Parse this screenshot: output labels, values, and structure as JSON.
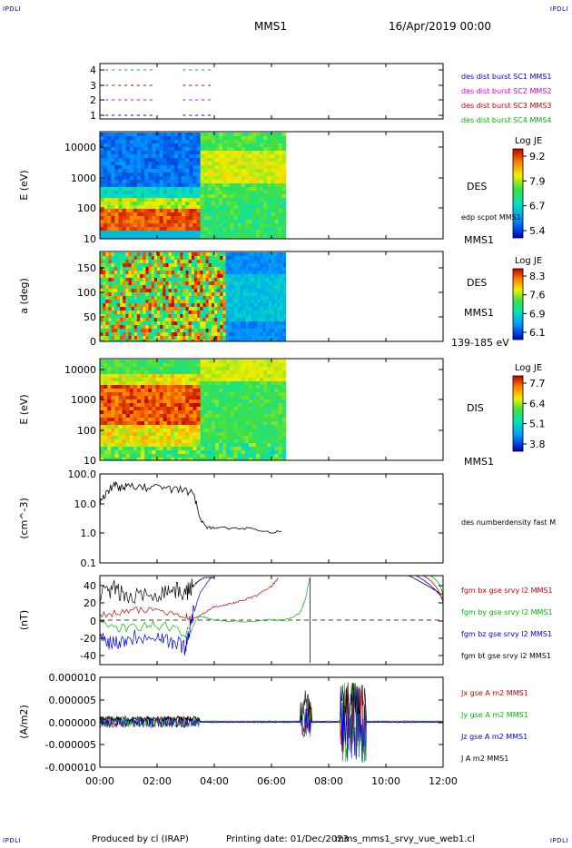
{
  "corner_tl": "IPDLI",
  "corner_tr": "IPDLI",
  "corner_bl": "IPDLI",
  "corner_br": "IPDLI",
  "header": {
    "spacecraft": "MMS1",
    "date": "16/Apr/2019 00:00"
  },
  "footer": {
    "produced_by": "Produced by cl (IRAP)",
    "printing_date": "Printing date: 01/Dec/2023",
    "filename": "mms_mms1_srvy_vue_web1.cl"
  },
  "colors": {
    "red": "#cc0000",
    "green": "#00bb00",
    "blue": "#0000dd",
    "magenta": "#dd00dd",
    "black": "#000000"
  },
  "chart_data": [
    {
      "type": "timeline",
      "panel": "burst availability",
      "y_ticks": [
        "4",
        "3",
        "2",
        "1"
      ],
      "legend": [
        {
          "label": "des dist burst SC1 MMS1",
          "color": "#0000dd"
        },
        {
          "label": "des dist burst SC2 MMS2",
          "color": "#dd00dd"
        },
        {
          "label": "des dist burst SC3 MMS3",
          "color": "#cc0000"
        },
        {
          "label": "des dist burst SC4 MMS4",
          "color": "#00bb00"
        }
      ]
    },
    {
      "type": "heatmap",
      "panel": "DES energy spectrogram",
      "ylabel": "E (eV)",
      "yscale": "log",
      "y_ticks": [
        "10000",
        "1000",
        "100",
        "10"
      ],
      "label": "DES",
      "overlay_label": "edp scpot MMS1",
      "sc_label": "MMS1",
      "colorbar": {
        "title": "Log JE",
        "ticks": [
          "9.2",
          "7.9",
          "6.7",
          "5.4"
        ]
      }
    },
    {
      "type": "heatmap",
      "panel": "DES pitch angle",
      "ylabel": "a (deg)",
      "y_ticks": [
        "150",
        "100",
        "50",
        "0"
      ],
      "ylim": [
        0,
        180
      ],
      "label": "DES",
      "sc_label": "MMS1",
      "energy_label": "139-185 eV",
      "colorbar": {
        "title": "Log JE",
        "ticks": [
          "8.3",
          "7.6",
          "6.9",
          "6.1"
        ]
      }
    },
    {
      "type": "heatmap",
      "panel": "DIS energy spectrogram",
      "ylabel": "E (eV)",
      "yscale": "log",
      "y_ticks": [
        "10000",
        "1000",
        "100",
        "10"
      ],
      "label": "DIS",
      "sc_label": "MMS1",
      "colorbar": {
        "title": "Log JE",
        "ticks": [
          "7.7",
          "6.4",
          "5.1",
          "3.8"
        ]
      }
    },
    {
      "type": "line",
      "panel": "density",
      "ylabel": "(cm^-3)",
      "yscale": "log",
      "y_ticks": [
        "100.0",
        "10.0",
        "1.0",
        "0.1"
      ],
      "ylim": [
        0.1,
        100
      ],
      "legend": [
        {
          "label": "des numberdensity fast M",
          "color": "#000000"
        }
      ],
      "series": [
        {
          "x": [
            0,
            0.25,
            0.5,
            0.75,
            1.0,
            1.5,
            2.0,
            2.5,
            3.0,
            3.3,
            3.5,
            3.75,
            4.0,
            5.0,
            5.5,
            6.0,
            6.4
          ],
          "values": [
            10,
            25,
            45,
            35,
            40,
            35,
            38,
            30,
            30,
            20,
            3,
            1.6,
            1.5,
            1.5,
            1.3,
            1.1,
            1.15
          ]
        }
      ]
    },
    {
      "type": "line",
      "panel": "magnetic field",
      "ylabel": "(nT)",
      "y_ticks": [
        "40",
        "20",
        "0",
        "-20",
        "-40"
      ],
      "ylim": [
        -50,
        50
      ],
      "legend": [
        {
          "label": "fgm bx gse srvy l2 MMS1",
          "color": "#cc0000"
        },
        {
          "label": "fgm by gse srvy l2 MMS1",
          "color": "#00bb00"
        },
        {
          "label": "fgm bz gse srvy l2 MMS1",
          "color": "#0000dd"
        },
        {
          "label": "fgm bt gse srvy l2 MMS1",
          "color": "#000000"
        }
      ],
      "series": [
        {
          "x": [
            0,
            1,
            2,
            3,
            3.2,
            3.5,
            4,
            4.5,
            5,
            5.5,
            6.0,
            6.25
          ],
          "values": [
            5,
            10,
            12,
            5,
            0,
            5,
            15,
            18,
            22,
            28,
            38,
            48
          ]
        },
        {
          "x": [
            0,
            1,
            2,
            3,
            3.5,
            4,
            5,
            6,
            6.5,
            7,
            7.2,
            7.35
          ],
          "values": [
            -5,
            -10,
            -5,
            -15,
            5,
            0,
            -2,
            0,
            0,
            8,
            25,
            50
          ]
        },
        {
          "x": [
            0,
            0.5,
            1,
            2,
            2.5,
            3,
            3.2,
            3.5,
            3.8,
            4.0
          ],
          "values": [
            -20,
            -25,
            -20,
            -15,
            -25,
            -30,
            0,
            30,
            45,
            50
          ]
        },
        {
          "x": [
            0,
            0.5,
            1,
            2,
            2.5,
            3,
            3.3,
            3.5,
            3.8,
            4.0
          ],
          "values": [
            30,
            35,
            25,
            30,
            35,
            30,
            40,
            45,
            50,
            50
          ]
        }
      ]
    },
    {
      "type": "line",
      "panel": "current density",
      "ylabel": "(A/m2)",
      "y_ticks": [
        "0.000010",
        "0.000005",
        "0.000000",
        "-0.000005",
        "-0.000010"
      ],
      "ylim": [
        -1e-05,
        1e-05
      ],
      "legend": [
        {
          "label": "Jx gse A m2 MMS1",
          "color": "#cc0000"
        },
        {
          "label": "Jy gse A m2 MMS1",
          "color": "#00bb00"
        },
        {
          "label": "Jz gse A m2 MMS1",
          "color": "#0000dd"
        },
        {
          "label": "J A m2 MMS1",
          "color": "#000000"
        }
      ]
    }
  ],
  "x_axis": {
    "ticks": [
      "00:00",
      "02:00",
      "04:00",
      "06:00",
      "08:00",
      "10:00",
      "12:00"
    ],
    "xlim": [
      0,
      12
    ]
  }
}
